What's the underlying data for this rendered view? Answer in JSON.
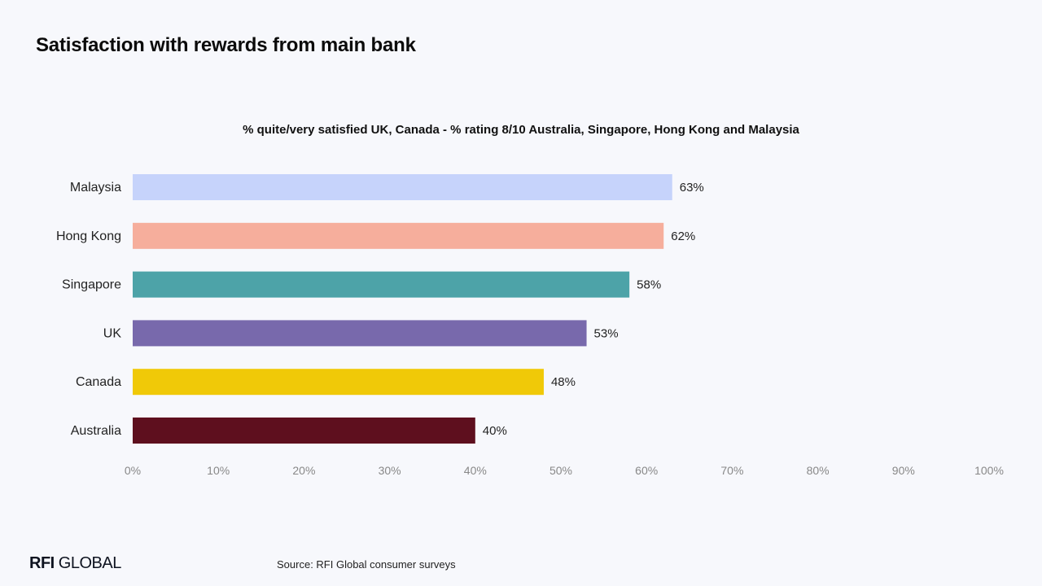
{
  "page": {
    "title": "Satisfaction with rewards from main bank",
    "source": "Source: RFI Global consumer surveys",
    "logo": {
      "bold": "RFI",
      "regular": "GLOBAL"
    }
  },
  "chart_data": {
    "type": "bar",
    "orientation": "horizontal",
    "title": "% quite/very satisfied UK, Canada - % rating 8/10 Australia, Singapore, Hong Kong and Malaysia",
    "xlabel": "",
    "ylabel": "",
    "categories": [
      "Malaysia",
      "Hong Kong",
      "Singapore",
      "UK",
      "Canada",
      "Australia"
    ],
    "values": [
      63,
      62,
      58,
      53,
      48,
      40
    ],
    "value_labels": [
      "63%",
      "62%",
      "58%",
      "53%",
      "48%",
      "40%"
    ],
    "colors": [
      "#c6d3fb",
      "#f6ae9c",
      "#4da3a8",
      "#7869ac",
      "#f0c908",
      "#5e0f1e"
    ],
    "xlim": [
      0,
      100
    ],
    "xticks": [
      "0%",
      "10%",
      "20%",
      "30%",
      "40%",
      "50%",
      "60%",
      "70%",
      "80%",
      "90%",
      "100%"
    ],
    "grid": false,
    "legend": "none"
  }
}
